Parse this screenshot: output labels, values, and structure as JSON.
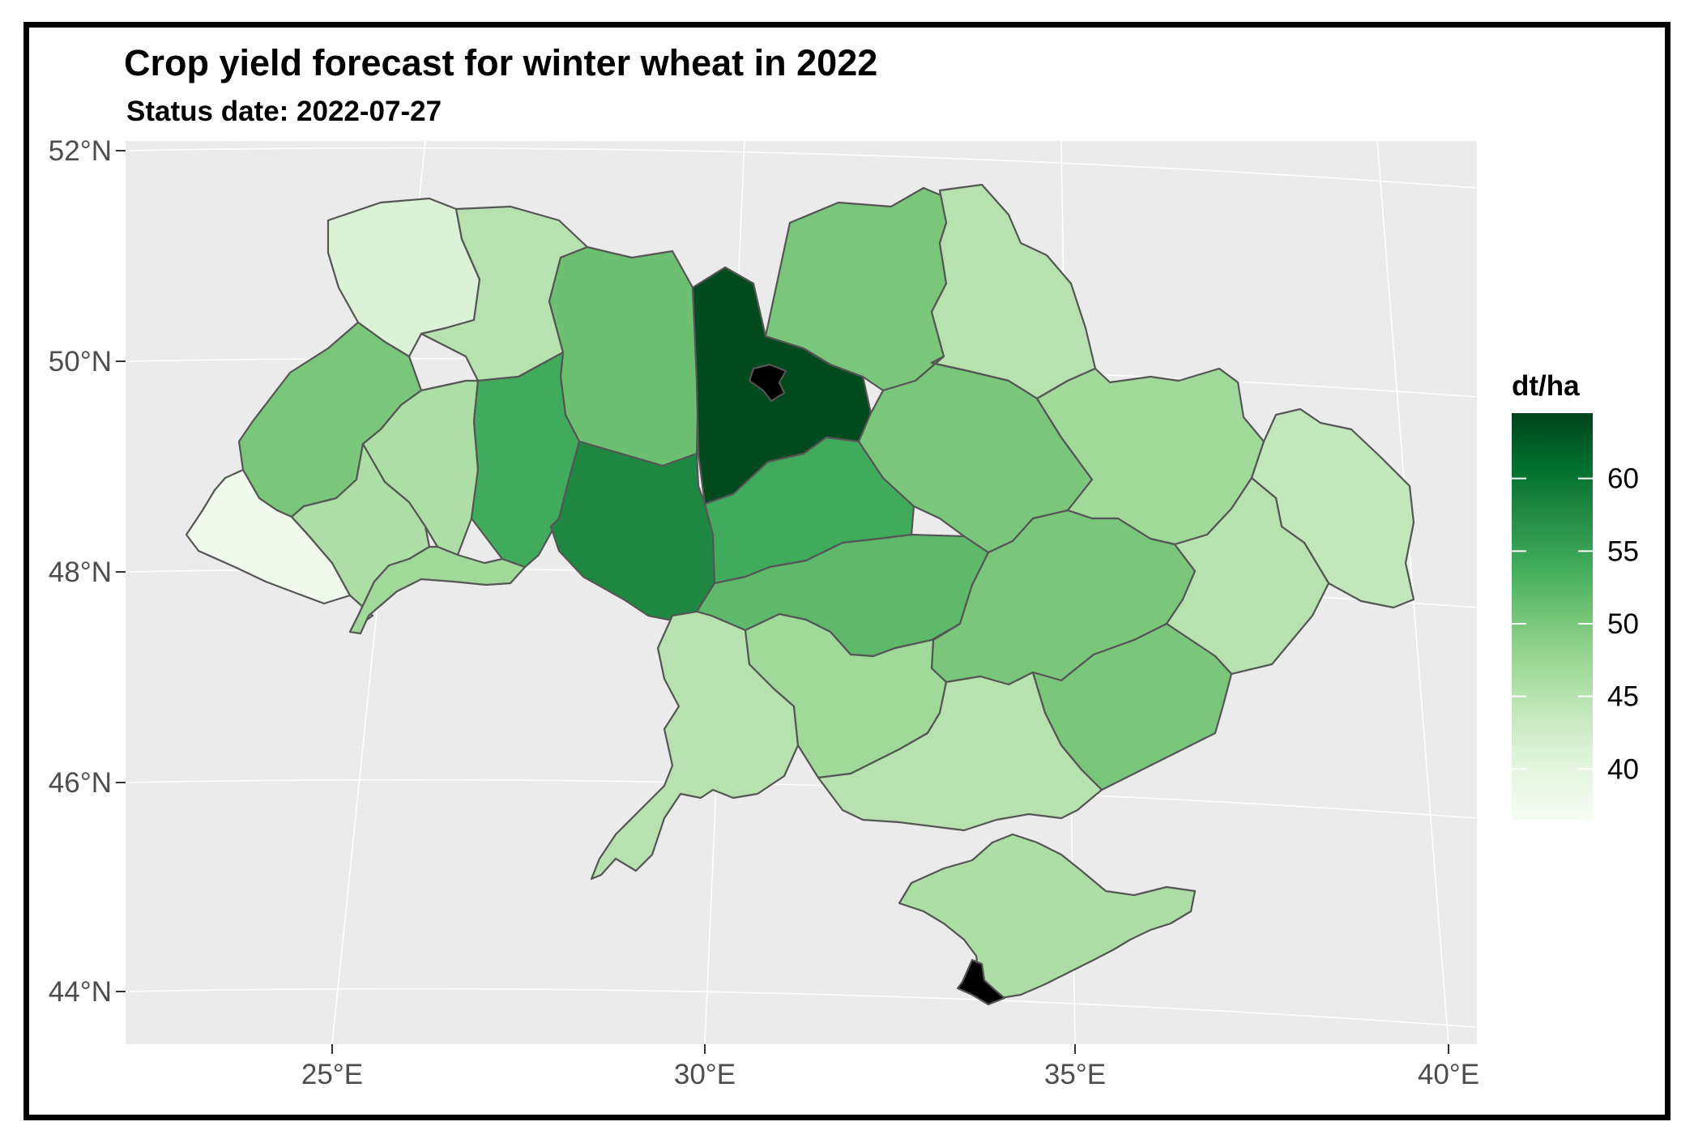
{
  "title": "Crop yield forecast for winter wheat in 2022",
  "subtitle": "Status date:  2022-07-27",
  "axes": {
    "lat_labels": [
      "52°N",
      "50°N",
      "48°N",
      "46°N",
      "44°N"
    ],
    "lon_labels": [
      "25°E",
      "30°E",
      "35°E",
      "40°E"
    ]
  },
  "legend": {
    "title": "dt/ha",
    "ticks": [
      "60",
      "55",
      "50",
      "45",
      "40"
    ],
    "tick_values": [
      60,
      55,
      50,
      45,
      40
    ],
    "min": 36.5,
    "max": 64.5,
    "color_low": "#f7fcf5",
    "color_high": "#00441b"
  },
  "colors": {
    "panel_background": "#ebebeb",
    "grid": "#ffffff",
    "region_border": "#555555",
    "no_data": "#000000"
  },
  "regions": [
    {
      "id": "volyn",
      "value": 41
    },
    {
      "id": "rivne",
      "value": 45
    },
    {
      "id": "zhytomyr",
      "value": 51
    },
    {
      "id": "kyiv-oblast",
      "value": 64
    },
    {
      "id": "kyiv-city",
      "value": null
    },
    {
      "id": "chernihiv",
      "value": 50
    },
    {
      "id": "sumy",
      "value": 45
    },
    {
      "id": "lviv",
      "value": 50
    },
    {
      "id": "ternopil",
      "value": 46
    },
    {
      "id": "khmelnytskyi",
      "value": 54
    },
    {
      "id": "vinnytsia",
      "value": 58
    },
    {
      "id": "cherkasy",
      "value": 54
    },
    {
      "id": "poltava",
      "value": 50
    },
    {
      "id": "kharkiv",
      "value": 47
    },
    {
      "id": "luhansk",
      "value": 44
    },
    {
      "id": "zakarpattia",
      "value": 38
    },
    {
      "id": "ivano-frankivsk",
      "value": 46
    },
    {
      "id": "chernivtsi",
      "value": 47
    },
    {
      "id": "kirovohrad",
      "value": 52
    },
    {
      "id": "dnipropetrovsk",
      "value": 50
    },
    {
      "id": "donetsk",
      "value": 45
    },
    {
      "id": "odesa",
      "value": 45
    },
    {
      "id": "mykolaiv",
      "value": 47
    },
    {
      "id": "kherson",
      "value": 45
    },
    {
      "id": "zaporizhzhia",
      "value": 50
    },
    {
      "id": "crimea",
      "value": 46
    },
    {
      "id": "sevastopol",
      "value": null
    }
  ]
}
